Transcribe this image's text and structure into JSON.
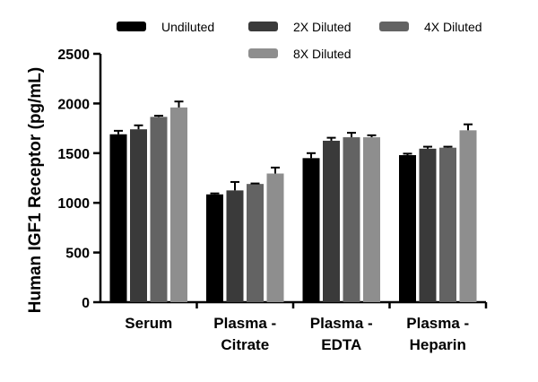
{
  "chart_data": {
    "type": "bar",
    "title": "",
    "xlabel": "",
    "ylabel": "Human IGF1 Receptor (pg/mL)",
    "ylim": [
      0,
      2500
    ],
    "yticks": [
      0,
      500,
      1000,
      1500,
      2000,
      2500
    ],
    "grid": false,
    "legend_position": "top",
    "categories": [
      [
        "Serum"
      ],
      [
        "Plasma -",
        "Citrate"
      ],
      [
        "Plasma -",
        "EDTA"
      ],
      [
        "Plasma -",
        "Heparin"
      ]
    ],
    "series": [
      {
        "name": "Undiluted",
        "color": "#000000",
        "values": [
          1690,
          1085,
          1450,
          1480
        ],
        "errors": [
          35,
          10,
          50,
          15
        ]
      },
      {
        "name": "2X Diluted",
        "color": "#3a3a3a",
        "values": [
          1740,
          1125,
          1625,
          1545
        ],
        "errors": [
          40,
          85,
          30,
          20
        ]
      },
      {
        "name": "4X Diluted",
        "color": "#636363",
        "values": [
          1865,
          1190,
          1660,
          1555
        ],
        "errors": [
          12,
          5,
          45,
          10
        ]
      },
      {
        "name": "8X Diluted",
        "color": "#8e8e8e",
        "values": [
          1960,
          1295,
          1660,
          1730
        ],
        "errors": [
          60,
          60,
          20,
          60
        ]
      }
    ]
  }
}
